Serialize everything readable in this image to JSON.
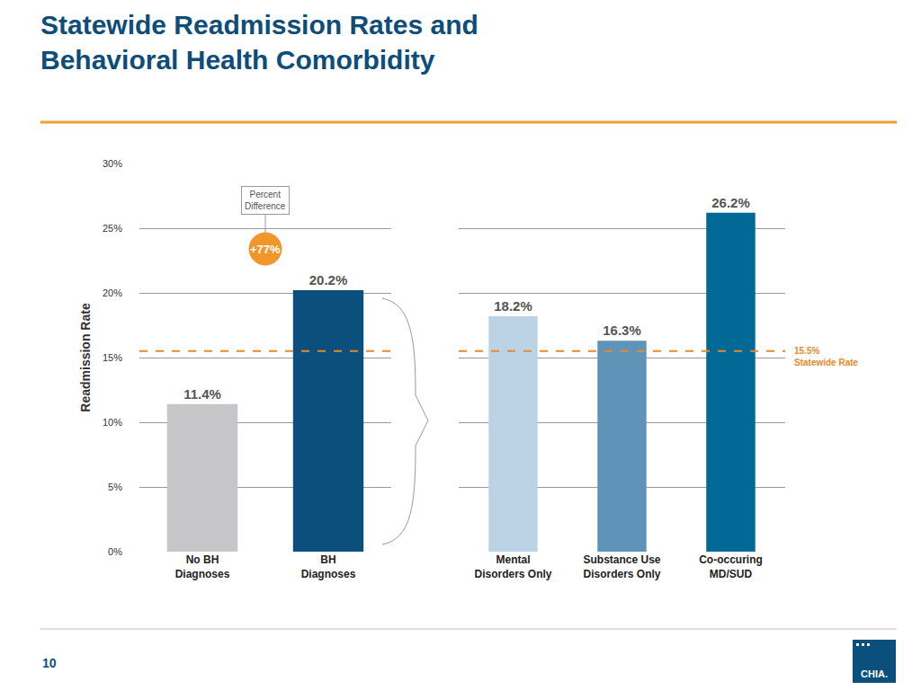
{
  "slide": {
    "title": "Statewide Readmission Rates and\nBehavioral Health Comorbidity",
    "page_number": "10",
    "logo": "CHIA."
  },
  "chart_data": [
    {
      "type": "bar",
      "ylabel": "Readmission Rate",
      "categories": [
        "No BH\nDiagnoses",
        "BH\nDiagnoses"
      ],
      "values": [
        11.4,
        20.2
      ],
      "value_labels": [
        "11.4%",
        "20.2%"
      ],
      "colors": [
        "#c6c6c8",
        "#0b4f7c"
      ],
      "ylim": [
        0,
        30
      ],
      "yticks": [
        {
          "value": 0,
          "label": "0%"
        },
        {
          "value": 5,
          "label": "5%"
        },
        {
          "value": 10,
          "label": "10%"
        },
        {
          "value": 15,
          "label": "15%"
        },
        {
          "value": 20,
          "label": "20%"
        },
        {
          "value": 25,
          "label": "25%"
        },
        {
          "value": 30,
          "label": "30%"
        }
      ],
      "grid": true,
      "data_labels": true,
      "annotations": [
        {
          "text": "Percent\nDifference"
        },
        {
          "text": "+77%"
        }
      ],
      "reference_line": {
        "value": 15.5,
        "line_style": "dashed",
        "color": "#e8892b"
      }
    },
    {
      "type": "bar",
      "categories": [
        "Mental\nDisorders Only",
        "Substance Use\nDisorders Only",
        "Co-occuring\nMD/SUD"
      ],
      "values": [
        18.2,
        16.3,
        26.2
      ],
      "value_labels": [
        "18.2%",
        "16.3%",
        "26.2%"
      ],
      "colors": [
        "#bcd3e6",
        "#5f94b8",
        "#006996"
      ],
      "ylim": [
        0,
        30
      ],
      "yticks": [
        {
          "value": 0,
          "label": "0%"
        },
        {
          "value": 5,
          "label": "5%"
        },
        {
          "value": 10,
          "label": "10%"
        },
        {
          "value": 15,
          "label": "15%"
        },
        {
          "value": 20,
          "label": "20%"
        },
        {
          "value": 25,
          "label": "25%"
        },
        {
          "value": 30,
          "label": "30%"
        }
      ],
      "grid": true,
      "data_labels": true,
      "tick_labels": "x",
      "reference_line": {
        "value": 15.5,
        "label": "15.5%\nStatewide Rate",
        "line_style": "dashed",
        "color": "#e8892b"
      }
    }
  ]
}
